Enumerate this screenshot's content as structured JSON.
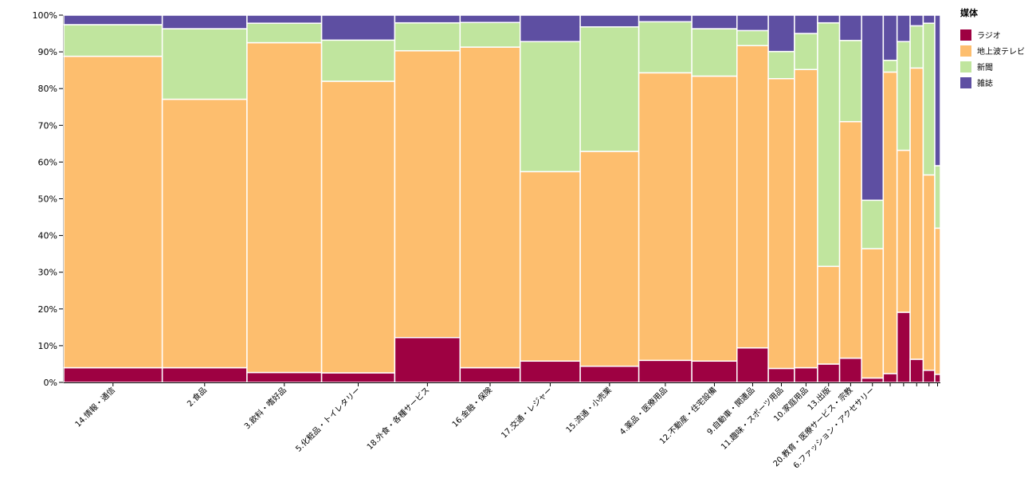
{
  "chart_data": {
    "type": "bar",
    "subtype": "marimekko-100-percent-stacked",
    "title": "",
    "xlabel": "",
    "ylabel": "",
    "ylim": [
      0,
      100
    ],
    "y_ticks": [
      "0%",
      "10%",
      "20%",
      "30%",
      "40%",
      "50%",
      "60%",
      "70%",
      "80%",
      "90%",
      "100%"
    ],
    "legend": {
      "title": "媒体",
      "position": "right"
    },
    "series": [
      {
        "name": "ラジオ",
        "color": "#9e0142"
      },
      {
        "name": "地上波テレビ",
        "color": "#fdbe6e"
      },
      {
        "name": "新聞",
        "color": "#c0e59e"
      },
      {
        "name": "雑誌",
        "color": "#5e4fa2"
      }
    ],
    "categories": [
      {
        "label": "14.情報・通信",
        "width": 26.4,
        "values": [
          4.0,
          84.8,
          8.6,
          2.6
        ],
        "show_label": true
      },
      {
        "label": "2.食品",
        "width": 22.7,
        "values": [
          4.0,
          73.1,
          19.2,
          3.7
        ],
        "show_label": true
      },
      {
        "label": "3.飲料・嗜好品",
        "width": 20.0,
        "values": [
          2.7,
          89.8,
          5.3,
          2.2
        ],
        "show_label": true
      },
      {
        "label": "5.化粧品・トイレタリー",
        "width": 19.6,
        "values": [
          2.6,
          79.4,
          11.2,
          6.8
        ],
        "show_label": true
      },
      {
        "label": "18.外食・各種サービス",
        "width": 17.5,
        "values": [
          12.2,
          78.1,
          7.6,
          2.1
        ],
        "show_label": true
      },
      {
        "label": "16.金融・保険",
        "width": 16.1,
        "values": [
          4.0,
          87.3,
          6.7,
          2.0
        ],
        "show_label": true
      },
      {
        "label": "17.交通・レジャー",
        "width": 16.1,
        "values": [
          5.8,
          51.6,
          35.4,
          7.2
        ],
        "show_label": true
      },
      {
        "label": "15.流通・小売業",
        "width": 15.7,
        "values": [
          4.4,
          58.5,
          33.9,
          3.2
        ],
        "show_label": true
      },
      {
        "label": "4.薬品・医療用品",
        "width": 14.2,
        "values": [
          6.0,
          78.3,
          13.9,
          1.8
        ],
        "show_label": true
      },
      {
        "label": "12.不動産・住宅設備",
        "width": 12.1,
        "values": [
          5.8,
          77.6,
          12.9,
          3.7
        ],
        "show_label": true
      },
      {
        "label": "9.自動車・関連品",
        "width": 8.4,
        "values": [
          9.4,
          82.3,
          4.1,
          4.2
        ],
        "show_label": true
      },
      {
        "label": "11.趣味・スポーツ用品",
        "width": 7.0,
        "values": [
          3.8,
          78.9,
          7.4,
          9.9
        ],
        "show_label": true
      },
      {
        "label": "10.家庭用品",
        "width": 6.2,
        "values": [
          4.0,
          81.2,
          9.8,
          5.0
        ],
        "show_label": true
      },
      {
        "label": "13.出版",
        "width": 5.9,
        "values": [
          5.0,
          26.6,
          66.3,
          2.1
        ],
        "show_label": true
      },
      {
        "label": "20.教育・医療サービス・宗教",
        "width": 5.9,
        "values": [
          6.6,
          64.4,
          22.1,
          6.9
        ],
        "show_label": true
      },
      {
        "label": "6.ファッション・アクセサリー",
        "width": 5.8,
        "values": [
          1.2,
          35.2,
          13.2,
          50.4
        ],
        "show_label": true
      },
      {
        "label": "",
        "width": 3.7,
        "values": [
          2.4,
          82.1,
          3.2,
          12.3
        ],
        "show_label": false
      },
      {
        "label": "",
        "width": 3.5,
        "values": [
          19.1,
          44.1,
          29.6,
          7.2
        ],
        "show_label": false
      },
      {
        "label": "",
        "width": 3.5,
        "values": [
          6.3,
          79.3,
          11.5,
          2.9
        ],
        "show_label": false
      },
      {
        "label": "",
        "width": 3.1,
        "values": [
          3.3,
          53.2,
          41.3,
          2.2
        ],
        "show_label": false
      },
      {
        "label": "",
        "width": 1.5,
        "values": [
          2.2,
          39.8,
          17.0,
          41.0
        ],
        "show_label": false
      }
    ]
  }
}
